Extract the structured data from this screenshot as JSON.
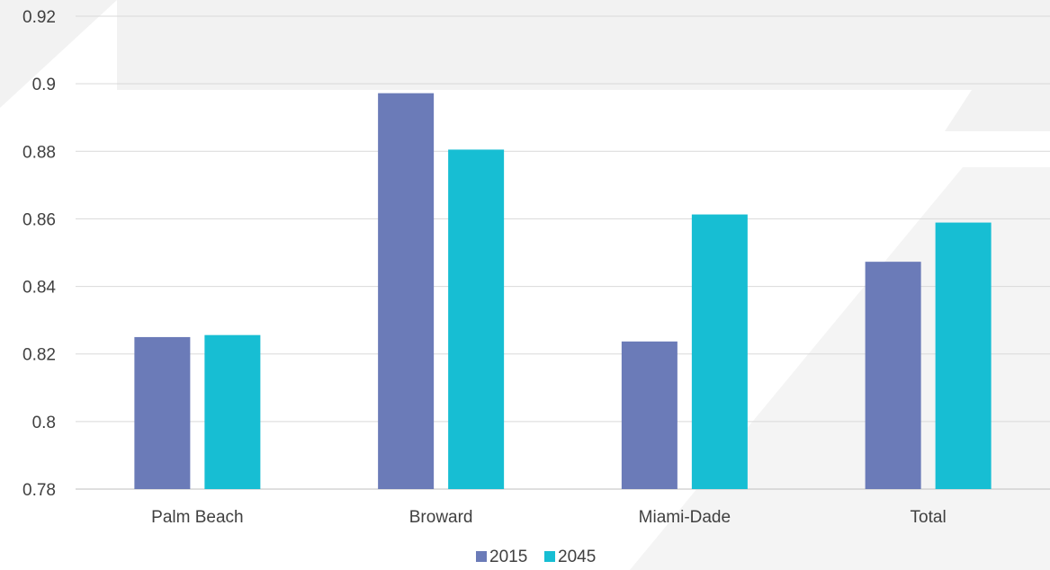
{
  "chart_data": {
    "type": "bar",
    "title": "",
    "xlabel": "",
    "ylabel": "",
    "categories": [
      "Palm Beach",
      "Broward",
      "Miami-Dade",
      "Total"
    ],
    "series": [
      {
        "name": "2015",
        "color": "#6b7bb8",
        "values": [
          0.825,
          0.8972,
          0.8237,
          0.8473
        ]
      },
      {
        "name": "2045",
        "color": "#17bed3",
        "values": [
          0.8256,
          0.8805,
          0.8613,
          0.8589
        ]
      }
    ],
    "ylim": [
      0.78,
      0.92
    ],
    "yticks": [
      "0.78",
      "0.8",
      "0.82",
      "0.84",
      "0.86",
      "0.88",
      "0.9",
      "0.92"
    ],
    "grid": true,
    "legend_position": "bottom"
  }
}
